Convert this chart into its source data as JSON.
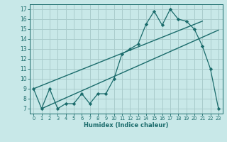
{
  "xlabel": "Humidex (Indice chaleur)",
  "background_color": "#c8e8e8",
  "line_color": "#1a6b6b",
  "grid_color": "#aacccc",
  "xlim": [
    -0.5,
    23.5
  ],
  "ylim": [
    6.5,
    17.5
  ],
  "yticks": [
    7,
    8,
    9,
    10,
    11,
    12,
    13,
    14,
    15,
    16,
    17
  ],
  "xticks": [
    0,
    1,
    2,
    3,
    4,
    5,
    6,
    7,
    8,
    9,
    10,
    11,
    12,
    13,
    14,
    15,
    16,
    17,
    18,
    19,
    20,
    21,
    22,
    23
  ],
  "series1_x": [
    0,
    1,
    2,
    3,
    4,
    5,
    6,
    7,
    8,
    9,
    10,
    11,
    12,
    13,
    14,
    15,
    16,
    17,
    18,
    19,
    20,
    21,
    22,
    23
  ],
  "series1_y": [
    9,
    7,
    9,
    7,
    7.5,
    7.5,
    8.5,
    7.5,
    8.5,
    8.5,
    10,
    12.5,
    13,
    13.5,
    15.5,
    16.8,
    15.4,
    17,
    16,
    15.8,
    15,
    13.3,
    11,
    7
  ],
  "series2_x": [
    0,
    21
  ],
  "series2_y": [
    9,
    15.8
  ],
  "series3_x": [
    1,
    23
  ],
  "series3_y": [
    7,
    14.9
  ]
}
